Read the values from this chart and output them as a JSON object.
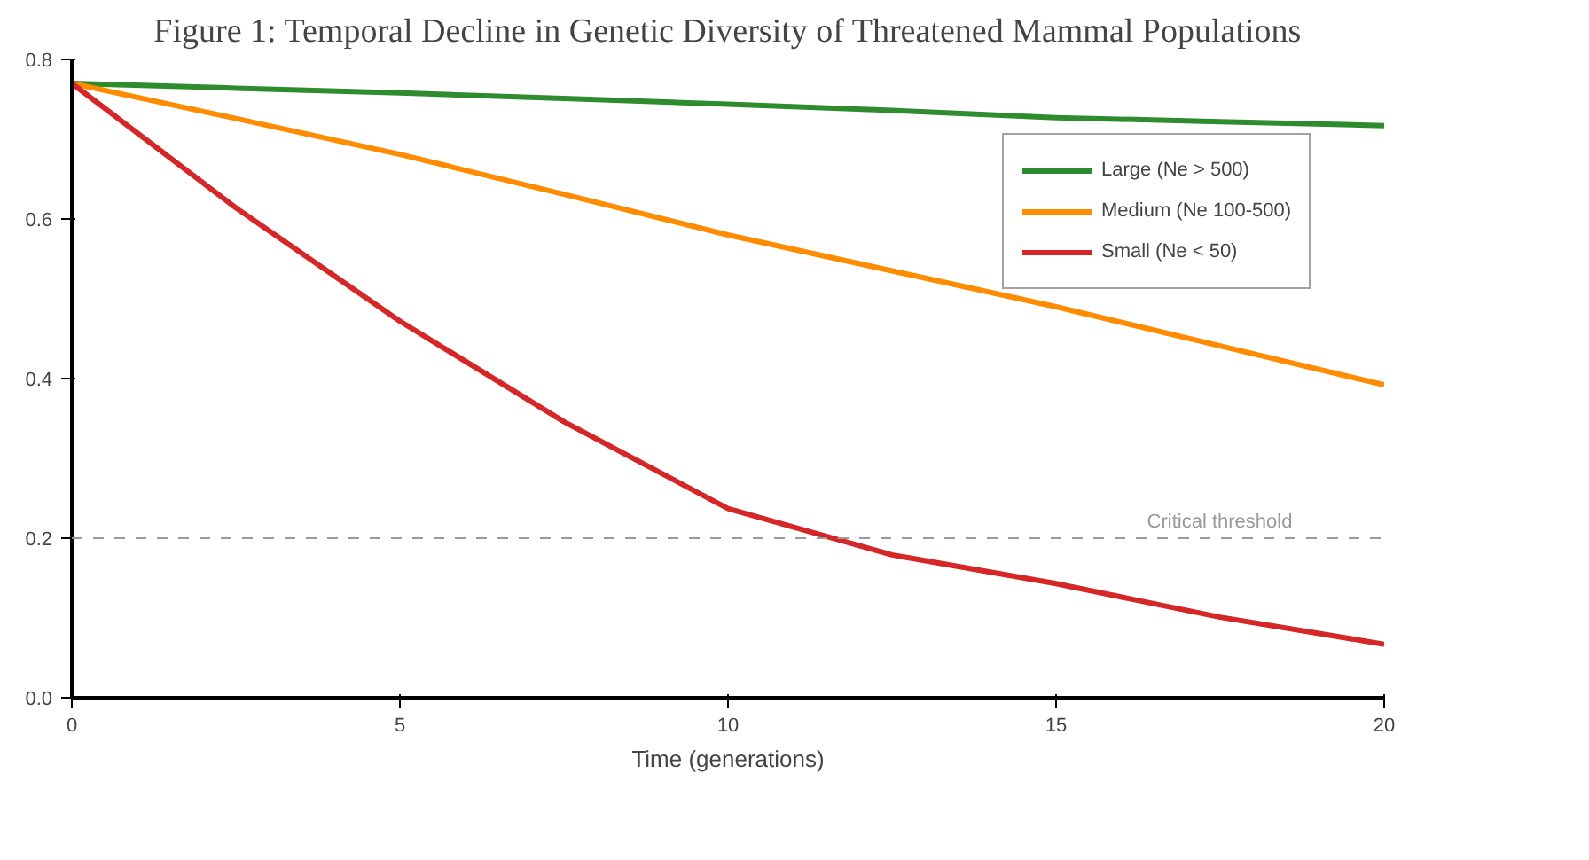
{
  "chart_data": {
    "type": "line",
    "title": "Figure 1: Temporal Decline in Genetic Diversity of Threatened Mammal Populations",
    "xlabel": "Time (generations)",
    "x": [
      0,
      2.5,
      5,
      7.5,
      10,
      12.5,
      15,
      17.5,
      20
    ],
    "series": [
      {
        "name": "Large (Ne > 500)",
        "color": "#2e8b2e",
        "values": [
          0.77,
          0.764,
          0.758,
          0.751,
          0.744,
          0.736,
          0.727,
          0.722,
          0.717
        ]
      },
      {
        "name": "Medium (Ne 100-500)",
        "color": "#ff8c00",
        "values": [
          0.77,
          0.726,
          0.681,
          0.631,
          0.58,
          0.535,
          0.49,
          0.441,
          0.392
        ]
      },
      {
        "name": "Small (Ne < 50)",
        "color": "#d62728",
        "values": [
          0.77,
          0.614,
          0.472,
          0.346,
          0.237,
          0.179,
          0.143,
          0.101,
          0.067
        ]
      }
    ],
    "xlim": [
      0,
      20
    ],
    "ylim": [
      0,
      0.8
    ],
    "xticks": [
      0,
      5,
      10,
      15,
      20
    ],
    "yticks": [
      {
        "value": 0,
        "label": "0.0"
      },
      0.2,
      0.4,
      0.6,
      0.8
    ],
    "ref_lines": [
      {
        "axis": "y",
        "value": 0.2,
        "label": "Critical threshold",
        "color": "#999999",
        "line_style": "dashed"
      }
    ],
    "grid": false,
    "legend": "right",
    "line_style": "solid",
    "marker": "none"
  }
}
